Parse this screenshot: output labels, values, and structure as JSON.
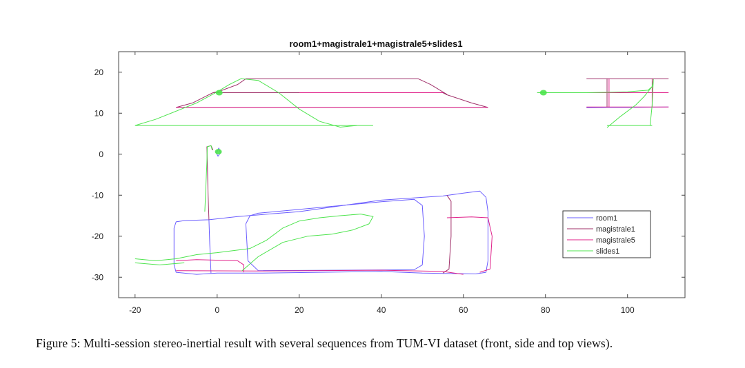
{
  "caption": "Figure 5: Multi-session stereo-inertial result with several sequences from TUM-VI dataset (front, side and top views).",
  "chart_data": {
    "type": "line",
    "title": "room1+magistrale1+magistrale5+slides1",
    "xlabel": "",
    "ylabel": "",
    "xlim": [
      -24,
      114
    ],
    "ylim": [
      -35,
      25
    ],
    "xticks": [
      -20,
      0,
      20,
      40,
      60,
      80,
      100
    ],
    "yticks": [
      20,
      10,
      0,
      -10,
      -20,
      -30
    ],
    "grid": false,
    "legend_position": "lower-right",
    "series": [
      {
        "name": "room1",
        "color": "#6a5cff",
        "paths": [
          [
            [
              0.0,
              0.6
            ],
            [
              0.4,
              1.5
            ],
            [
              0.8,
              0.3
            ],
            [
              0.2,
              -0.5
            ],
            [
              -0.3,
              0.5
            ],
            [
              0.0,
              0.6
            ]
          ],
          [
            [
              -2,
              -16
            ],
            [
              5,
              -15.2
            ],
            [
              20,
              -14
            ],
            [
              40,
              -11.2
            ],
            [
              55,
              -10.2
            ],
            [
              60,
              -9.5
            ],
            [
              64,
              -9
            ],
            [
              65.5,
              -10.5
            ],
            [
              66,
              -14
            ],
            [
              66,
              -26
            ],
            [
              65.5,
              -28.8
            ],
            [
              63,
              -29.2
            ],
            [
              50,
              -29
            ],
            [
              40,
              -28.6
            ],
            [
              10,
              -29
            ],
            [
              0,
              -29
            ],
            [
              -5,
              -29.3
            ],
            [
              -10,
              -28.8
            ],
            [
              -10.5,
              -27
            ],
            [
              -10.5,
              -18
            ],
            [
              -10,
              -16.5
            ],
            [
              -8,
              -16.2
            ],
            [
              -2,
              -16
            ]
          ],
          [
            [
              48,
              -11
            ],
            [
              50,
              -12.5
            ],
            [
              50.5,
              -20
            ],
            [
              50,
              -27
            ],
            [
              48,
              -28.2
            ],
            [
              10,
              -28.4
            ],
            [
              7.5,
              -26
            ],
            [
              7,
              -17
            ],
            [
              8,
              -15
            ],
            [
              10,
              -14.4
            ],
            [
              40,
              -11.6
            ],
            [
              48,
              -11
            ]
          ],
          [
            [
              -2,
              -16
            ],
            [
              -1.8,
              -22
            ],
            [
              -1.5,
              -29
            ]
          ],
          [
            [
              90,
              11.3
            ],
            [
              95,
              11.4
            ],
            [
              100,
              11.4
            ],
            [
              110,
              11.5
            ]
          ]
        ]
      },
      {
        "name": "magistrale1",
        "color": "#a0306a",
        "paths": [
          [
            [
              -1,
              15
            ],
            [
              2,
              15
            ],
            [
              5,
              15
            ],
            [
              20,
              15
            ],
            [
              40,
              15
            ],
            [
              55,
              15
            ],
            [
              56,
              14.5
            ],
            [
              62,
              12.5
            ],
            [
              66,
              11.4
            ]
          ],
          [
            [
              -1,
              15
            ],
            [
              1,
              15.5
            ],
            [
              5,
              17
            ],
            [
              7,
              18.4
            ],
            [
              30,
              18.4
            ],
            [
              49,
              18.4
            ],
            [
              52,
              17
            ],
            [
              56,
              14.6
            ]
          ],
          [
            [
              -10,
              11.4
            ],
            [
              0,
              11.4
            ],
            [
              20,
              11.4
            ],
            [
              40,
              11.4
            ],
            [
              66,
              11.4
            ]
          ],
          [
            [
              -10,
              11.4
            ],
            [
              -6,
              12.5
            ],
            [
              -3,
              14
            ],
            [
              -1,
              15
            ]
          ],
          [
            [
              -2,
              -16
            ],
            [
              -2.2,
              -10
            ],
            [
              -2.4,
              -2
            ],
            [
              -2.5,
              1.8
            ],
            [
              -1.5,
              2.1
            ],
            [
              -1,
              1
            ]
          ],
          [
            [
              56,
              -10
            ],
            [
              57,
              -11.5
            ],
            [
              57,
              -20
            ],
            [
              56.5,
              -28
            ],
            [
              55,
              -29
            ]
          ],
          [
            [
              95,
              18.4
            ],
            [
              95,
              15
            ],
            [
              95,
              11.4
            ]
          ],
          [
            [
              90,
              18.4
            ],
            [
              100,
              18.4
            ],
            [
              110,
              18.4
            ]
          ]
        ]
      },
      {
        "name": "magistrale5",
        "color": "#e0208a",
        "paths": [
          [
            [
              20,
              15
            ],
            [
              40,
              15
            ],
            [
              55,
              15
            ]
          ],
          [
            [
              -10,
              11.4
            ],
            [
              20,
              11.4
            ],
            [
              66,
              11.4
            ]
          ],
          [
            [
              -10,
              -26
            ],
            [
              -5,
              -25.7
            ],
            [
              5,
              -26
            ],
            [
              6.5,
              -27
            ],
            [
              6.5,
              -28.8
            ]
          ],
          [
            [
              -10,
              -28.4
            ],
            [
              10,
              -28.5
            ],
            [
              40,
              -28.3
            ],
            [
              55,
              -28.6
            ],
            [
              60,
              -29.3
            ]
          ],
          [
            [
              56,
              -15.5
            ],
            [
              62,
              -15.3
            ],
            [
              66,
              -15.5
            ],
            [
              67,
              -20
            ],
            [
              66.5,
              -28
            ],
            [
              64,
              -28.8
            ]
          ],
          [
            [
              78,
              15
            ],
            [
              90,
              15
            ],
            [
              100,
              15
            ],
            [
              110,
              15
            ]
          ],
          [
            [
              90,
              11.5
            ],
            [
              100,
              11.5
            ],
            [
              110,
              11.5
            ]
          ],
          [
            [
              95.5,
              18.4
            ],
            [
              95.5,
              11.4
            ]
          ],
          [
            [
              106,
              18.4
            ],
            [
              106,
              11.4
            ]
          ]
        ]
      },
      {
        "name": "slides1",
        "color": "#4ee44e",
        "paths": [
          [
            [
              -20,
              7
            ],
            [
              -10,
              7
            ],
            [
              0,
              7
            ],
            [
              20,
              7
            ],
            [
              38,
              7
            ]
          ],
          [
            [
              -20,
              7
            ],
            [
              -15,
              8.5
            ],
            [
              -10,
              10.5
            ],
            [
              -5,
              12.5
            ],
            [
              0,
              15.2
            ],
            [
              3,
              17
            ],
            [
              6,
              18.5
            ]
          ],
          [
            [
              6,
              18.4
            ],
            [
              10,
              18
            ],
            [
              15,
              15
            ],
            [
              20,
              11
            ],
            [
              25,
              8
            ],
            [
              30,
              6.6
            ],
            [
              34,
              7
            ]
          ],
          [
            [
              -3,
              -14
            ],
            [
              -2.5,
              -2
            ],
            [
              -2.4,
              1.8
            ],
            [
              -1.5,
              2.1
            ],
            [
              -1.2,
              1
            ]
          ],
          [
            [
              -20,
              -25.5
            ],
            [
              -15,
              -26
            ],
            [
              -10,
              -25.5
            ],
            [
              -5,
              -24.5
            ],
            [
              0,
              -24
            ],
            [
              8,
              -23
            ],
            [
              12,
              -21
            ],
            [
              16,
              -18
            ],
            [
              20,
              -16.3
            ],
            [
              25,
              -15.5
            ],
            [
              30,
              -15
            ],
            [
              35,
              -14.6
            ],
            [
              38,
              -15.2
            ],
            [
              37,
              -17
            ],
            [
              33,
              -18.5
            ],
            [
              28,
              -19.5
            ],
            [
              22,
              -20
            ],
            [
              16,
              -21.5
            ],
            [
              10,
              -25
            ],
            [
              6,
              -28.5
            ]
          ],
          [
            [
              -20,
              -26.5
            ],
            [
              -14,
              -27
            ],
            [
              -8,
              -26.5
            ]
          ],
          [
            [
              78,
              15
            ],
            [
              90,
              15
            ],
            [
              100,
              15.2
            ],
            [
              105,
              15.6
            ],
            [
              106,
              16.5
            ],
            [
              106.3,
              18.3
            ]
          ],
          [
            [
              95,
              6.5
            ],
            [
              98,
              9
            ],
            [
              102,
              12
            ],
            [
              104,
              14
            ],
            [
              106,
              16.5
            ]
          ],
          [
            [
              95,
              7
            ],
            [
              106,
              7
            ]
          ],
          [
            [
              105.5,
              7
            ],
            [
              106,
              12
            ],
            [
              106.3,
              18.3
            ]
          ]
        ]
      }
    ],
    "clusters": [
      {
        "series": "slides1",
        "x": 0.3,
        "y": 0.6
      },
      {
        "series": "slides1",
        "x": 0.5,
        "y": 15.0
      },
      {
        "series": "slides1",
        "x": 79.5,
        "y": 15.0
      }
    ]
  }
}
